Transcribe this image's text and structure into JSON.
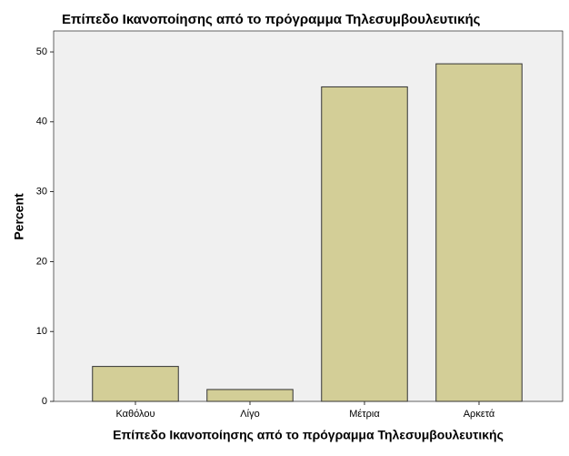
{
  "chart_data": {
    "type": "bar",
    "title": "Επίπεδο Ικανοποίησης από το πρόγραμμα Τηλεσυμβουλευτικής",
    "x_label": "Επίπεδο Ικανοποίησης από το πρόγραμμα Τηλεσυμβουλευτικής",
    "y_label": "Percent",
    "categories": [
      "Καθόλου",
      "Λίγο",
      "Μέτρια",
      "Αρκετά"
    ],
    "values": [
      5,
      1.7,
      45,
      48.3
    ],
    "color": "#d3ce97",
    "ylim": [
      0,
      53
    ],
    "yticks": [
      0,
      10,
      20,
      30,
      40,
      50
    ],
    "grid": false
  }
}
